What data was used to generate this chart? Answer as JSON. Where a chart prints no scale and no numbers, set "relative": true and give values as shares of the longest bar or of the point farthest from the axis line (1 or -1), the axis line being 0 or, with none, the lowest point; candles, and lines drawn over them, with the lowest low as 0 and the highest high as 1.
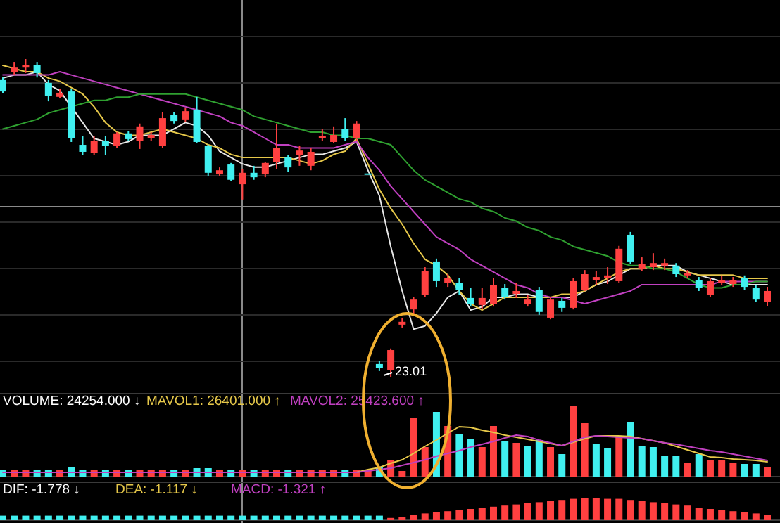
{
  "chart_data": [
    {
      "type": "candlestick",
      "relative": true,
      "grid": true,
      "categories": [
        null,
        null,
        null,
        null,
        null,
        null,
        null,
        null,
        null,
        null,
        null,
        null,
        null,
        null,
        null,
        null,
        null,
        null,
        null,
        null,
        null,
        null,
        null,
        null,
        null,
        null,
        null,
        null,
        null,
        null,
        null,
        null,
        null,
        null,
        null,
        null,
        null,
        null,
        null,
        null,
        null,
        null,
        null,
        null,
        null,
        null,
        null,
        null,
        null,
        null,
        null,
        null,
        null,
        null,
        null,
        null,
        null,
        null,
        null,
        null,
        null,
        null,
        null,
        null,
        null,
        null,
        null,
        null
      ],
      "ohlc": [
        [
          0.934,
          0.942,
          0.894,
          0.898
        ],
        [
          0.96,
          0.991,
          0.951,
          0.973
        ],
        [
          0.973,
          1.0,
          0.956,
          0.982
        ],
        [
          0.982,
          0.991,
          0.942,
          0.956
        ],
        [
          0.925,
          0.934,
          0.867,
          0.885
        ],
        [
          0.881,
          0.907,
          0.876,
          0.894
        ],
        [
          0.898,
          0.907,
          0.739,
          0.752
        ],
        [
          0.73,
          0.757,
          0.699,
          0.708
        ],
        [
          0.704,
          0.757,
          0.699,
          0.743
        ],
        [
          0.743,
          0.757,
          0.699,
          0.726
        ],
        [
          0.726,
          0.77,
          0.721,
          0.766
        ],
        [
          0.766,
          0.774,
          0.743,
          0.748
        ],
        [
          0.743,
          0.797,
          0.717,
          0.788
        ],
        [
          0.752,
          0.77,
          0.743,
          0.761
        ],
        [
          0.726,
          0.832,
          0.721,
          0.814
        ],
        [
          0.823,
          0.832,
          0.797,
          0.805
        ],
        [
          0.81,
          0.845,
          0.801,
          0.836
        ],
        [
          0.841,
          0.881,
          0.735,
          0.739
        ],
        [
          0.726,
          0.73,
          0.633,
          0.642
        ],
        [
          0.637,
          0.659,
          0.633,
          0.65
        ],
        [
          0.668,
          0.673,
          0.615,
          0.62
        ],
        [
          0.606,
          0.655,
          0.558,
          0.642
        ],
        [
          0.642,
          0.664,
          0.62,
          0.628
        ],
        [
          0.637,
          0.677,
          0.628,
          0.673
        ],
        [
          0.677,
          0.797,
          0.655,
          0.721
        ],
        [
          0.69,
          0.699,
          0.646,
          0.659
        ],
        [
          0.699,
          0.726,
          0.664,
          0.712
        ],
        [
          0.664,
          0.721,
          0.65,
          0.708
        ],
        [
          0.752,
          0.779,
          0.743,
          0.757
        ],
        [
          0.739,
          0.788,
          0.735,
          0.761
        ],
        [
          0.779,
          0.814,
          0.743,
          0.752
        ],
        [
          0.752,
          0.805,
          0.743,
          0.797
        ],
        [
          0.64,
          0.64,
          0.64,
          0.64
        ],
        [
          0.04,
          0.049,
          0.018,
          0.027
        ],
        [
          0.022,
          0.089,
          0,
          0.084
        ],
        [
          0.164,
          0.186,
          0.155,
          0.173
        ],
        [
          0.212,
          0.252,
          0.195,
          0.243
        ],
        [
          0.257,
          0.345,
          0.252,
          0.332
        ],
        [
          0.363,
          0.372,
          0.283,
          0.301
        ],
        [
          0.296,
          0.323,
          0.283,
          0.31
        ],
        [
          0.296,
          0.31,
          0.257,
          0.274
        ],
        [
          0.248,
          0.279,
          0.221,
          0.23
        ],
        [
          0.226,
          0.279,
          0.212,
          0.248
        ],
        [
          0.23,
          0.31,
          0.221,
          0.288
        ],
        [
          0.279,
          0.292,
          0.243,
          0.252
        ],
        [
          0.261,
          0.296,
          0.248,
          0.27
        ],
        [
          0.23,
          0.257,
          0.221,
          0.243
        ],
        [
          0.274,
          0.283,
          0.195,
          0.204
        ],
        [
          0.186,
          0.252,
          0.181,
          0.243
        ],
        [
          0.239,
          0.248,
          0.204,
          0.217
        ],
        [
          0.217,
          0.31,
          0.212,
          0.301
        ],
        [
          0.274,
          0.336,
          0.27,
          0.323
        ],
        [
          0.305,
          0.332,
          0.288,
          0.314
        ],
        [
          0.31,
          0.345,
          0.292,
          0.319
        ],
        [
          0.301,
          0.412,
          0.296,
          0.403
        ],
        [
          0.447,
          0.456,
          0.354,
          0.363
        ],
        [
          0.341,
          0.376,
          0.332,
          0.354
        ],
        [
          0.345,
          0.389,
          0.336,
          0.358
        ],
        [
          0.35,
          0.372,
          0.336,
          0.358
        ],
        [
          0.35,
          0.358,
          0.314,
          0.323
        ],
        [
          0.319,
          0.336,
          0.31,
          0.327
        ],
        [
          0.305,
          0.314,
          0.27,
          0.279
        ],
        [
          0.257,
          0.31,
          0.252,
          0.301
        ],
        [
          0.296,
          0.319,
          0.288,
          0.305
        ],
        [
          0.292,
          0.314,
          0.283,
          0.305
        ],
        [
          0.31,
          0.319,
          0.274,
          0.283
        ],
        [
          0.279,
          0.288,
          0.235,
          0.243
        ],
        [
          0.235,
          0.283,
          0.221,
          0.27
        ]
      ],
      "colors": [
        "#40f0f0",
        "#ff4040",
        "#ff4040",
        "#40f0f0",
        "#40f0f0",
        "#ff4040",
        "#40f0f0",
        "#40f0f0",
        "#ff4040",
        "#40f0f0",
        "#ff4040",
        "#40f0f0",
        "#ff4040",
        "#ff4040",
        "#ff4040",
        "#40f0f0",
        "#ff4040",
        "#40f0f0",
        "#40f0f0",
        "#ff4040",
        "#40f0f0",
        "#ff4040",
        "#40f0f0",
        "#ff4040",
        "#ff4040",
        "#40f0f0",
        "#ff4040",
        "#ff4040",
        "#ff4040",
        "#ff4040",
        "#40f0f0",
        "#ff4040",
        "#40f0f0",
        "#40f0f0",
        "#ff4040",
        "#ff4040",
        "#ff4040",
        "#ff4040",
        "#40f0f0",
        "#ff4040",
        "#40f0f0",
        "#40f0f0",
        "#ff4040",
        "#ff4040",
        "#40f0f0",
        "#ff4040",
        "#ff4040",
        "#40f0f0",
        "#ff4040",
        "#40f0f0",
        "#ff4040",
        "#ff4040",
        "#ff4040",
        "#ff4040",
        "#ff4040",
        "#40f0f0",
        "#ff4040",
        "#ff4040",
        "#ff4040",
        "#40f0f0",
        "#ff4040",
        "#40f0f0",
        "#ff4040",
        "#ff4040",
        "#ff4040",
        "#40f0f0",
        "#40f0f0",
        "#ff4040"
      ],
      "annotations": [
        "23.01"
      ],
      "series": [
        {
          "type": "line",
          "color": "#e8e8e8",
          "values": [
            0.94,
            0.95,
            0.95,
            0.96,
            0.92,
            0.9,
            0.85,
            0.8,
            0.75,
            0.74,
            0.73,
            0.74,
            0.76,
            0.76,
            0.76,
            0.78,
            0.8,
            0.79,
            0.76,
            0.71,
            0.69,
            0.67,
            0.66,
            0.66,
            0.67,
            0.68,
            0.69,
            0.7,
            0.7,
            0.71,
            0.72,
            0.74,
            0.65,
            0.57,
            0.41,
            0.27,
            0.15,
            0.16,
            0.2,
            0.25,
            0.27,
            0.21,
            0.22,
            0.25,
            0.25,
            0.26,
            0.26,
            0.25,
            0.25,
            0.25,
            0.25,
            0.27,
            0.29,
            0.3,
            0.32,
            0.34,
            0.34,
            0.35,
            0.35,
            0.35,
            0.33,
            0.32,
            0.31,
            0.3,
            0.29,
            0.29,
            0.29,
            0.29
          ]
        },
        {
          "type": "line",
          "color": "#e6c84a",
          "values": [
            0.98,
            0.97,
            0.96,
            0.96,
            0.94,
            0.93,
            0.91,
            0.89,
            0.85,
            0.8,
            0.77,
            0.76,
            0.76,
            0.77,
            0.78,
            0.77,
            0.76,
            0.75,
            0.73,
            0.72,
            0.7,
            0.69,
            0.69,
            0.69,
            0.69,
            0.69,
            0.68,
            0.67,
            0.68,
            0.7,
            0.71,
            0.75,
            0.67,
            0.59,
            0.53,
            0.48,
            0.42,
            0.37,
            0.35,
            0.32,
            0.27,
            0.23,
            0.21,
            0.23,
            0.25,
            0.25,
            0.25,
            0.25,
            0.25,
            0.26,
            0.26,
            0.27,
            0.29,
            0.31,
            0.33,
            0.34,
            0.34,
            0.35,
            0.34,
            0.34,
            0.33,
            0.32,
            0.32,
            0.32,
            0.32,
            0.31,
            0.31,
            0.31
          ]
        },
        {
          "type": "line",
          "color": "#c040c0",
          "values": [
            0.95,
            0.95,
            0.95,
            0.95,
            0.95,
            0.96,
            0.95,
            0.94,
            0.93,
            0.92,
            0.91,
            0.9,
            0.89,
            0.88,
            0.87,
            0.86,
            0.85,
            0.84,
            0.83,
            0.82,
            0.8,
            0.79,
            0.77,
            0.75,
            0.73,
            0.73,
            0.72,
            0.72,
            0.72,
            0.72,
            0.73,
            0.74,
            0.69,
            0.65,
            0.6,
            0.56,
            0.52,
            0.48,
            0.44,
            0.42,
            0.4,
            0.37,
            0.35,
            0.33,
            0.31,
            0.29,
            0.28,
            0.26,
            0.25,
            0.25,
            0.24,
            0.23,
            0.24,
            0.25,
            0.26,
            0.27,
            0.29,
            0.29,
            0.29,
            0.29,
            0.29,
            0.29,
            0.29,
            0.3,
            0.3,
            0.3,
            0.3,
            0.3
          ]
        },
        {
          "type": "line",
          "color": "#2fa030",
          "values": [
            0.78,
            0.79,
            0.8,
            0.81,
            0.83,
            0.84,
            0.85,
            0.86,
            0.87,
            0.87,
            0.88,
            0.88,
            0.89,
            0.89,
            0.89,
            0.89,
            0.89,
            0.88,
            0.87,
            0.86,
            0.85,
            0.84,
            0.82,
            0.81,
            0.8,
            0.79,
            0.78,
            0.77,
            0.77,
            0.76,
            0.76,
            0.75,
            0.75,
            0.74,
            0.73,
            0.69,
            0.65,
            0.62,
            0.6,
            0.58,
            0.56,
            0.55,
            0.53,
            0.52,
            0.5,
            0.49,
            0.47,
            0.46,
            0.44,
            0.43,
            0.41,
            0.4,
            0.39,
            0.38,
            0.36,
            0.35,
            0.35,
            0.34,
            0.34,
            0.33,
            0.31,
            0.29,
            0.28,
            0.28,
            0.29,
            0.29,
            0.3,
            0.3
          ]
        }
      ]
    },
    {
      "type": "bar",
      "relative": true,
      "categories": [
        null,
        null,
        null,
        null,
        null,
        null,
        null,
        null,
        null,
        null,
        null,
        null,
        null,
        null,
        null,
        null,
        null,
        null,
        null,
        null,
        null,
        null,
        null,
        null,
        null,
        null,
        null,
        null,
        null,
        null,
        null,
        null,
        null,
        null,
        null,
        null,
        null,
        null,
        null,
        null,
        null,
        null,
        null,
        null,
        null,
        null,
        null,
        null,
        null,
        null,
        null,
        null,
        null,
        null,
        null,
        null,
        null,
        null,
        null,
        null,
        null,
        null,
        null,
        null,
        null,
        null,
        null,
        null
      ],
      "values": [
        0.1,
        0.1,
        0.1,
        0.1,
        0.1,
        0.1,
        0.14,
        0.1,
        0.1,
        0.1,
        0.1,
        0.1,
        0.1,
        0.1,
        0.1,
        0.1,
        0.1,
        0.12,
        0.12,
        0.1,
        0.1,
        0.1,
        0.1,
        0.1,
        0.1,
        0.1,
        0.1,
        0.1,
        0.1,
        0.1,
        0.1,
        0.1,
        0.1,
        0.14,
        0.24,
        0.08,
        0.84,
        0.42,
        0.92,
        0.72,
        0.6,
        0.54,
        0.42,
        0.72,
        0.5,
        0.48,
        0.44,
        0.52,
        0.42,
        0.32,
        1,
        0.76,
        0.46,
        0.4,
        0.58,
        0.78,
        0.44,
        0.42,
        0.3,
        0.3,
        0.2,
        0.32,
        0.24,
        0.24,
        0.2,
        0.18,
        0.18,
        0.14
      ],
      "colors": [
        "#40f0f0",
        "#ff4040",
        "#ff4040",
        "#40f0f0",
        "#40f0f0",
        "#ff4040",
        "#40f0f0",
        "#40f0f0",
        "#ff4040",
        "#40f0f0",
        "#ff4040",
        "#40f0f0",
        "#ff4040",
        "#ff4040",
        "#ff4040",
        "#40f0f0",
        "#ff4040",
        "#40f0f0",
        "#40f0f0",
        "#ff4040",
        "#40f0f0",
        "#ff4040",
        "#40f0f0",
        "#ff4040",
        "#ff4040",
        "#40f0f0",
        "#ff4040",
        "#ff4040",
        "#ff4040",
        "#ff4040",
        "#40f0f0",
        "#ff4040",
        "#ff4040",
        "#40f0f0",
        "#ff4040",
        "#ff4040",
        "#ff4040",
        "#ff4040",
        "#40f0f0",
        "#ff4040",
        "#40f0f0",
        "#40f0f0",
        "#ff4040",
        "#ff4040",
        "#40f0f0",
        "#ff4040",
        "#40f0f0",
        "#40f0f0",
        "#ff4040",
        "#40f0f0",
        "#ff4040",
        "#ff4040",
        "#40f0f0",
        "#40f0f0",
        "#ff4040",
        "#40f0f0",
        "#40f0f0",
        "#40f0f0",
        "#40f0f0",
        "#40f0f0",
        "#ff4040",
        "#40f0f0",
        "#ff4040",
        "#ff4040",
        "#ff4040",
        "#40f0f0",
        "#40f0f0",
        "#ff4040"
      ],
      "annotations": [
        "VOLUME: 24254.000 ↓"
      ],
      "series": [
        {
          "type": "line",
          "name": "MAVOL1: 26401.000 ↑",
          "color": "#e6c84a",
          "values": [
            null,
            null,
            null,
            null,
            null,
            null,
            null,
            null,
            null,
            null,
            null,
            null,
            null,
            null,
            null,
            null,
            null,
            null,
            null,
            null,
            null,
            null,
            null,
            null,
            null,
            null,
            null,
            null,
            null,
            null,
            null,
            0.06,
            0.1,
            0.13,
            0.19,
            0.24,
            0.33,
            0.43,
            0.52,
            0.62,
            0.71,
            0.7,
            0.66,
            0.63,
            0.59,
            0.56,
            0.53,
            0.5,
            0.47,
            0.44,
            0.49,
            0.54,
            0.58,
            0.58,
            0.58,
            0.57,
            0.54,
            0.51,
            0.48,
            0.43,
            0.38,
            0.33,
            0.28,
            0.27,
            0.25,
            0.24,
            0.23,
            0.21
          ]
        },
        {
          "type": "line",
          "name": "MAVOL2: 25423.600 ↑",
          "color": "#c040c0",
          "values": [
            0.06,
            0.06,
            0.06,
            0.06,
            0.06,
            0.06,
            0.06,
            0.06,
            0.06,
            0.06,
            0.06,
            0.06,
            0.06,
            0.06,
            0.06,
            0.06,
            0.06,
            0.06,
            0.06,
            0.06,
            0.06,
            0.06,
            0.06,
            0.06,
            0.06,
            0.06,
            0.06,
            0.06,
            0.06,
            0.06,
            0.06,
            0.06,
            0.08,
            0.1,
            0.12,
            0.16,
            0.2,
            0.24,
            0.29,
            0.33,
            0.37,
            0.42,
            0.46,
            0.5,
            0.55,
            0.59,
            0.57,
            0.52,
            0.48,
            0.44,
            0.5,
            0.56,
            0.58,
            0.57,
            0.56,
            0.55,
            0.54,
            0.51,
            0.48,
            0.46,
            0.43,
            0.4,
            0.37,
            0.35,
            0.32,
            0.29,
            0.26,
            0.23
          ]
        }
      ]
    },
    {
      "type": "bar",
      "relative": true,
      "categories": [
        null,
        null,
        null,
        null,
        null,
        null,
        null,
        null,
        null,
        null,
        null,
        null,
        null,
        null,
        null,
        null,
        null,
        null,
        null,
        null,
        null,
        null,
        null,
        null,
        null,
        null,
        null,
        null,
        null,
        null,
        null,
        null,
        null,
        null,
        null,
        null,
        null,
        null,
        null,
        null,
        null,
        null,
        null,
        null,
        null,
        null,
        null,
        null,
        null,
        null,
        null,
        null,
        null,
        null,
        null,
        null,
        null,
        null,
        null,
        null,
        null,
        null,
        null,
        null,
        null,
        null,
        null,
        null
      ],
      "values": [
        0.2,
        0.2,
        0.2,
        0.2,
        0.2,
        0.2,
        0.2,
        0.2,
        0.2,
        0.2,
        0.2,
        0.2,
        0.2,
        0.2,
        0.2,
        0.2,
        0.2,
        0.2,
        0.2,
        0.2,
        0.2,
        0.2,
        0.2,
        0.2,
        0.2,
        0.2,
        0.2,
        0.2,
        0.2,
        0.2,
        0.2,
        0.2,
        0.2,
        0.2,
        0.1,
        0.15,
        0.25,
        0.3,
        0.35,
        0.4,
        0.45,
        0.5,
        0.55,
        0.6,
        0.65,
        0.7,
        0.75,
        0.8,
        0.85,
        0.9,
        0.95,
        1,
        1,
        0.95,
        0.95,
        0.9,
        0.85,
        0.8,
        0.75,
        0.7,
        0.65,
        0.55,
        0.5,
        0.45,
        0.4,
        0.35,
        0.3,
        0.25
      ],
      "colors": [
        "#40f0f0",
        "#40f0f0",
        "#40f0f0",
        "#40f0f0",
        "#40f0f0",
        "#40f0f0",
        "#40f0f0",
        "#40f0f0",
        "#40f0f0",
        "#40f0f0",
        "#40f0f0",
        "#40f0f0",
        "#40f0f0",
        "#40f0f0",
        "#40f0f0",
        "#40f0f0",
        "#40f0f0",
        "#40f0f0",
        "#40f0f0",
        "#40f0f0",
        "#40f0f0",
        "#40f0f0",
        "#40f0f0",
        "#40f0f0",
        "#40f0f0",
        "#40f0f0",
        "#40f0f0",
        "#40f0f0",
        "#40f0f0",
        "#40f0f0",
        "#40f0f0",
        "#40f0f0",
        "#40f0f0",
        "#40f0f0",
        "#ff4040",
        "#ff4040",
        "#ff4040",
        "#ff4040",
        "#ff4040",
        "#ff4040",
        "#ff4040",
        "#ff4040",
        "#ff4040",
        "#ff4040",
        "#ff4040",
        "#ff4040",
        "#ff4040",
        "#ff4040",
        "#ff4040",
        "#ff4040",
        "#ff4040",
        "#ff4040",
        "#ff4040",
        "#ff4040",
        "#ff4040",
        "#ff4040",
        "#ff4040",
        "#ff4040",
        "#ff4040",
        "#ff4040",
        "#ff4040",
        "#ff4040",
        "#ff4040",
        "#ff4040",
        "#ff4040",
        "#ff4040",
        "#ff4040",
        "#ff4040"
      ],
      "annotations": [
        "DIF: -1.778 ↓",
        "DEA: -1.117 ↓",
        "MACD: -1.321 ↑"
      ]
    }
  ]
}
